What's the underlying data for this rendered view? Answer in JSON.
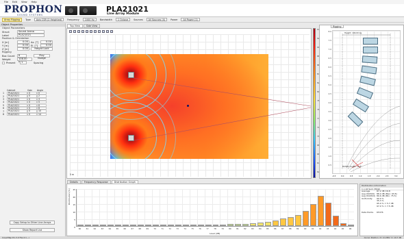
{
  "menu": [
    "File",
    "Edit",
    "View",
    "Help"
  ],
  "brand": {
    "name": "PROPHON",
    "tagline": "SOUND SYSTEMS"
  },
  "product": {
    "model": "PLA21021",
    "subtitle": "Line Array Module"
  },
  "toolbar": {
    "rigging_btn": "Array Rigging",
    "type_label": "Type",
    "type_value": "Axis CSR (2 Heighted)",
    "frequency_label": "Frequency",
    "frequency_value": "1000 Hz",
    "bandwidth_label": "Bandwidth",
    "bandwidth_value": "1 Octave",
    "sources_label": "Sources",
    "sources_value": "All Sources (4)",
    "power_label": "Power",
    "power_value": "All Power (1)"
  },
  "left": {
    "title": "Object Properties",
    "section_params": "Object Parameters",
    "fields": [
      {
        "label": "Struct",
        "value": "Sound Arena"
      },
      {
        "label": "Label",
        "value": "PLA21021"
      }
    ],
    "section_pos": "Position & Orientation",
    "pos": [
      {
        "label": "X [m]",
        "value": "0.00",
        "label2": "Az. [°]",
        "value2": "0.00"
      },
      {
        "label": "Y [m]",
        "value": "0.00",
        "label2": "El. [°]",
        "value2": "0.00"
      },
      {
        "label": "Z [m]",
        "value": "0.00",
        "label2": "Height Lock",
        "value2": ""
      }
    ],
    "section_rig": "Rigging",
    "rig": [
      {
        "label": "Box Count",
        "value": "8",
        "button": "Play Nudge"
      },
      {
        "label": "Weight",
        "value": "108.00 kg"
      }
    ],
    "rig_check": "Present",
    "rig_hash": "1",
    "rig_check2_label": "Spacing",
    "table_headers": [
      "",
      "Cabinet",
      "Gain",
      "Angle"
    ],
    "table_rows": [
      [
        "1",
        "PLA21021",
        "0",
        "0"
      ],
      [
        "2",
        "PLA21021",
        "0",
        "2"
      ],
      [
        "3",
        "PLA21021",
        "0",
        "3"
      ],
      [
        "4",
        "PLA21021",
        "0",
        "5"
      ],
      [
        "5",
        "PLA21021",
        "0",
        "6"
      ],
      [
        "6",
        "PLA21021",
        "0",
        "8"
      ],
      [
        "7",
        "PLA21021",
        "0",
        "10"
      ],
      [
        "8",
        "PLA21021",
        "0",
        "14"
      ]
    ],
    "btn_copy": "Copy Setup to Other Line Arrays",
    "btn_report": "Show Report List"
  },
  "main_tabs": [
    "Top View",
    "Side View"
  ],
  "map": {
    "scale_label": "5 m"
  },
  "colorbar": {
    "labels": [
      "94.0",
      "92.0",
      "90.0",
      "88.0",
      "86.0",
      "84.0",
      "82.0",
      "80.0",
      "78.0",
      "76.0",
      "74.0",
      "72.0",
      "70.0",
      "68.0",
      "66.0",
      "64.0",
      "62.0"
    ]
  },
  "rigging": {
    "tab": "Rigging",
    "height_label": "Height: 100.00 kg",
    "bottom_label": "Bottom Angle: 14.0°",
    "yticks": [
      "8.0",
      "7.5",
      "7.0",
      "6.5",
      "6.0",
      "5.5",
      "5.0",
      "4.5",
      "4.0",
      "3.5",
      "3.0",
      "2.5",
      "2.0",
      "1.5",
      "1.0",
      "0.5"
    ],
    "xticks": [
      "-0.5",
      "0.0",
      "0.5",
      "1.0",
      "1.5",
      "2.0",
      "2.5",
      "3.0"
    ]
  },
  "bottom_tabs": [
    "Details",
    "Frequency Response",
    "Distribution Graph"
  ],
  "chart_data": {
    "type": "bar",
    "categories": [
      "60",
      "61",
      "62",
      "63",
      "64",
      "65",
      "66",
      "67",
      "68",
      "69",
      "70",
      "71",
      "72",
      "73",
      "74",
      "75",
      "76",
      "77",
      "78",
      "79",
      "80",
      "81",
      "82",
      "83",
      "84",
      "85",
      "86",
      "87",
      "88",
      "89",
      "90",
      "91",
      "92",
      "93",
      "94",
      "95",
      "96"
    ],
    "values": [
      0.1,
      0.1,
      0.1,
      0.1,
      0.2,
      0.2,
      0.3,
      0.3,
      0.4,
      0.4,
      0.5,
      0.5,
      0.6,
      0.6,
      0.7,
      0.8,
      0.9,
      1.0,
      1.0,
      1.1,
      1.2,
      1.4,
      1.5,
      1.8,
      2.2,
      2.8,
      3.6,
      4.8,
      6.0,
      7.5,
      10.0,
      14.5,
      20.0,
      15.5,
      7.0,
      2.0,
      0.5
    ],
    "xlabel": "Level [dB]",
    "ylabel": "Distribution [%]",
    "ylim": [
      0,
      25
    ],
    "yticks": [
      "25",
      "20",
      "15",
      "10",
      "5",
      "0"
    ]
  },
  "stats": {
    "title": "Distribution Information",
    "subtitle": "1 x All Sum (Total)",
    "rows": [
      {
        "k": "Average",
        "v": "87.2 dB ±6.8"
      },
      {
        "k": "Avg (SD/Std)",
        "v": "88.0 dB (Max: 93.8)"
      },
      {
        "k": "Avg (Std/Std)",
        "v": "89.6 dB (Min: 75.5)"
      },
      {
        "k": "Uniformity",
        "v": "90.0 %"
      },
      {
        "k": "",
        "v": "35.3 %"
      },
      {
        "k": "",
        "v": "95.0 % = 5.7 dB"
      },
      {
        "k": "",
        "v": "97.0 % = 7.5 dB"
      },
      {
        "k": "Data Points",
        "v": "65376"
      }
    ]
  },
  "status": {
    "left": "CoverMap Pro 3.0 File (C:\\...)",
    "right": "Cursor Position: X= 21.881 Y= 19.7 dB"
  },
  "colors": {
    "accent": "#1b2a5a",
    "button_bg": "#fdf0a8"
  }
}
